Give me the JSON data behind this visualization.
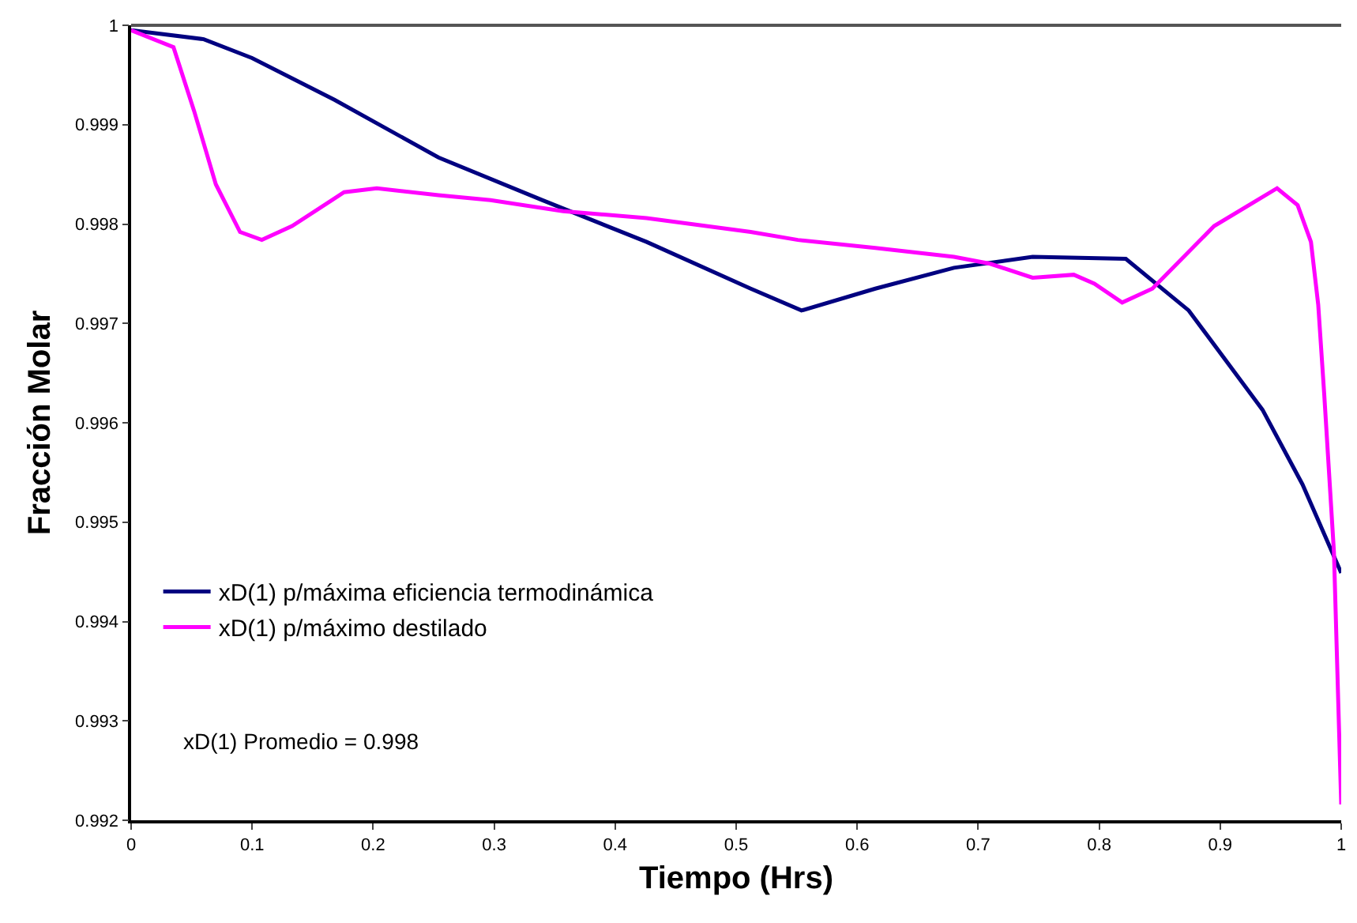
{
  "chart_data": {
    "type": "line",
    "xlabel": "Tiempo (Hrs)",
    "ylabel": "Fracción Molar",
    "xlim": [
      0,
      1
    ],
    "xticks": [
      0,
      0.1,
      0.2,
      0.3,
      0.4,
      0.5,
      0.6,
      0.7,
      0.8,
      0.9,
      1
    ],
    "ylim": [
      0.992,
      1
    ],
    "yticks": [
      0.992,
      0.993,
      0.994,
      0.995,
      0.996,
      0.997,
      0.998,
      0.999,
      1
    ],
    "grid": false,
    "legend": "bottom left",
    "marker": "none",
    "line_style": "solid",
    "annotations": [
      "xD(1) Promedio = 0.998"
    ],
    "series": [
      {
        "name": "xD(1) p/máxima eficiencia termodinámica",
        "color": "#000080",
        "x": [
          0,
          0.06,
          0.1,
          0.168,
          0.254,
          0.34,
          0.426,
          0.512,
          0.554,
          0.615,
          0.68,
          0.745,
          0.822,
          0.874,
          0.935,
          0.968,
          1
        ],
        "values": [
          0.99995,
          0.99986,
          0.99967,
          0.99925,
          0.99867,
          0.99824,
          0.99782,
          0.99735,
          0.99713,
          0.99735,
          0.99756,
          0.99767,
          0.99765,
          0.99713,
          0.99613,
          0.99538,
          0.99449
        ]
      },
      {
        "name": "xD(1) p/máximo destilado",
        "color": "#ff00ff",
        "x": [
          0,
          0.035,
          0.052,
          0.07,
          0.09,
          0.108,
          0.133,
          0.176,
          0.203,
          0.254,
          0.297,
          0.357,
          0.426,
          0.512,
          0.551,
          0.615,
          0.68,
          0.71,
          0.745,
          0.779,
          0.796,
          0.819,
          0.844,
          0.895,
          0.947,
          0.964,
          0.975,
          0.981,
          0.986,
          0.994,
          1
        ],
        "values": [
          0.99995,
          0.99978,
          0.99914,
          0.9984,
          0.99792,
          0.99784,
          0.99798,
          0.99832,
          0.99836,
          0.99829,
          0.99824,
          0.99813,
          0.99806,
          0.99792,
          0.99784,
          0.99776,
          0.99767,
          0.9976,
          0.99746,
          0.99749,
          0.9974,
          0.99721,
          0.99735,
          0.99798,
          0.99836,
          0.99819,
          0.99782,
          0.99719,
          0.99628,
          0.9947,
          0.99216
        ]
      }
    ]
  }
}
